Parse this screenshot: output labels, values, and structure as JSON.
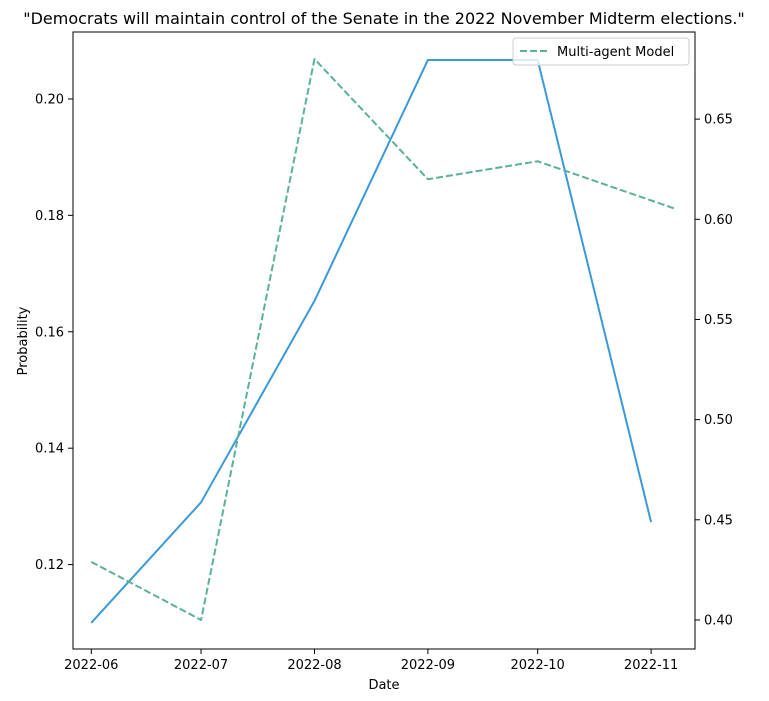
{
  "chart_data": {
    "type": "line",
    "title": "\"Democrats will maintain control of the Senate in the 2022 November Midterm elections.\"",
    "xlabel": "Date",
    "ylabel": "Probability",
    "y2label": "",
    "x_ticks": [
      "2022-06",
      "2022-07",
      "2022-08",
      "2022-09",
      "2022-10",
      "2022-11"
    ],
    "y_ticks": [
      "0.12",
      "0.14",
      "0.16",
      "0.18",
      "0.20"
    ],
    "y2_ticks": [
      "0.40",
      "0.45",
      "0.50",
      "0.55",
      "0.60",
      "0.65"
    ],
    "ylim": [
      0.1055,
      0.2115
    ],
    "y2lim": [
      0.3855,
      0.6935
    ],
    "xlim": [
      "2022-05-27",
      "2022-11-13"
    ],
    "grid": false,
    "legend": {
      "placement": "top-right",
      "entries": [
        "Multi-agent Model"
      ]
    },
    "colors": {
      "solid": "#3a9ad9",
      "dashed": "#5ab09a"
    },
    "series": [
      {
        "axis": "left",
        "style": "solid",
        "color": "#3a9ad9",
        "x": [
          "2022-06-01",
          "2022-07-01",
          "2022-08-01",
          "2022-09-01",
          "2022-10-01",
          "2022-11-01"
        ],
        "values": [
          0.11,
          0.1307,
          0.1653,
          0.2067,
          0.2067,
          0.1273
        ]
      },
      {
        "name": "Multi-agent Model",
        "axis": "right",
        "style": "dashed",
        "color": "#5ab09a",
        "x": [
          "2022-06-01",
          "2022-07-01",
          "2022-08-01",
          "2022-09-01",
          "2022-10-01",
          "2022-11-08"
        ],
        "values": [
          0.429,
          0.4,
          0.68,
          0.62,
          0.629,
          0.605
        ]
      }
    ]
  }
}
